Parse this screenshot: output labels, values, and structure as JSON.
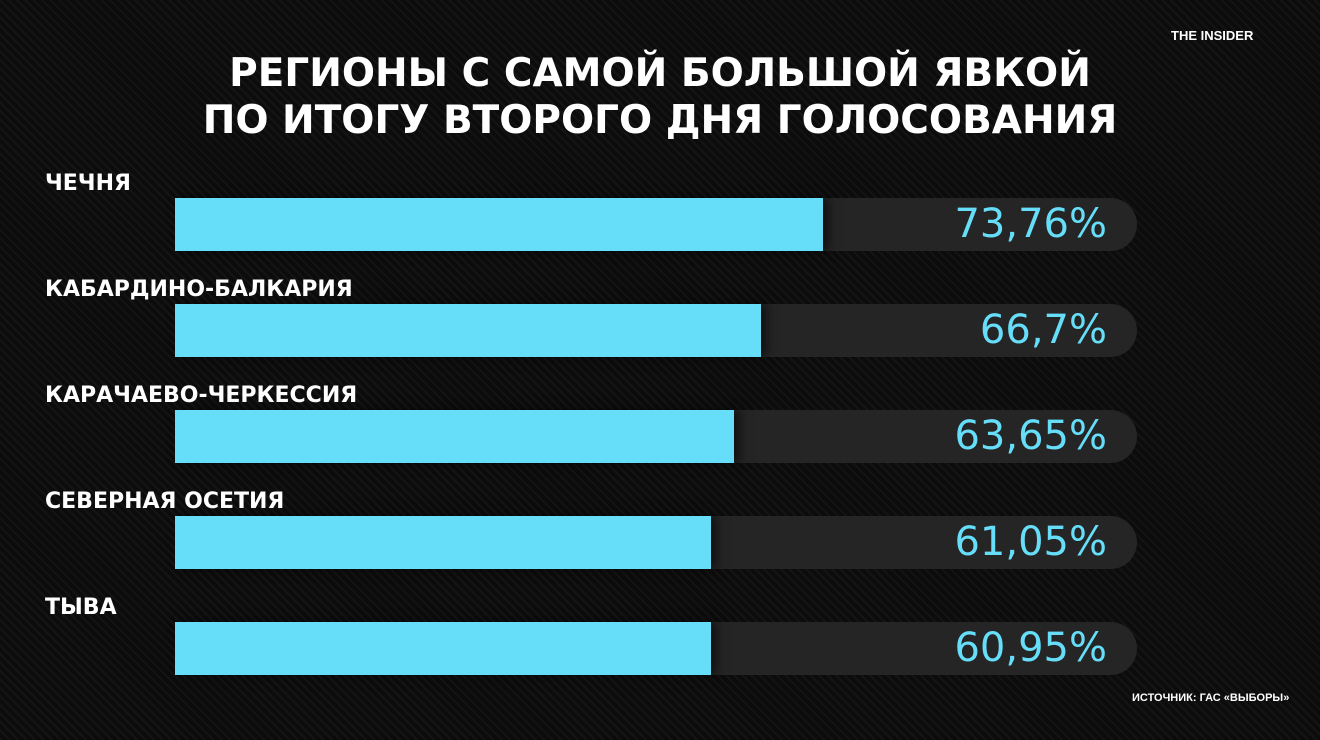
{
  "brand": "THE INSIDER",
  "source": "ИСТОЧНИК: ГАС «ВЫБОРЫ»",
  "chart_data": {
    "type": "bar",
    "orientation": "horizontal",
    "title": [
      "РЕГИОНЫ С САМОЙ БОЛЬШОЙ ЯВКОЙ",
      "ПО ИТОГУ ВТОРОГО ДНЯ ГОЛОСОВАНИЯ"
    ],
    "categories": [
      "ЧЕЧНЯ",
      "КАБАРДИНО-БАЛКАРИЯ",
      "КАРАЧАЕВО-ЧЕРКЕССИЯ",
      "СЕВЕРНАЯ ОСЕТИЯ",
      "ТЫВА"
    ],
    "values": [
      73.76,
      66.7,
      63.65,
      61.05,
      60.95
    ],
    "value_labels": [
      "73,76%",
      "66,7%",
      "63,65%",
      "61,05%",
      "60,95%"
    ],
    "xlim": [
      0,
      100
    ],
    "grid": false,
    "bar_color": "#66def9",
    "track_color": "#252525"
  }
}
